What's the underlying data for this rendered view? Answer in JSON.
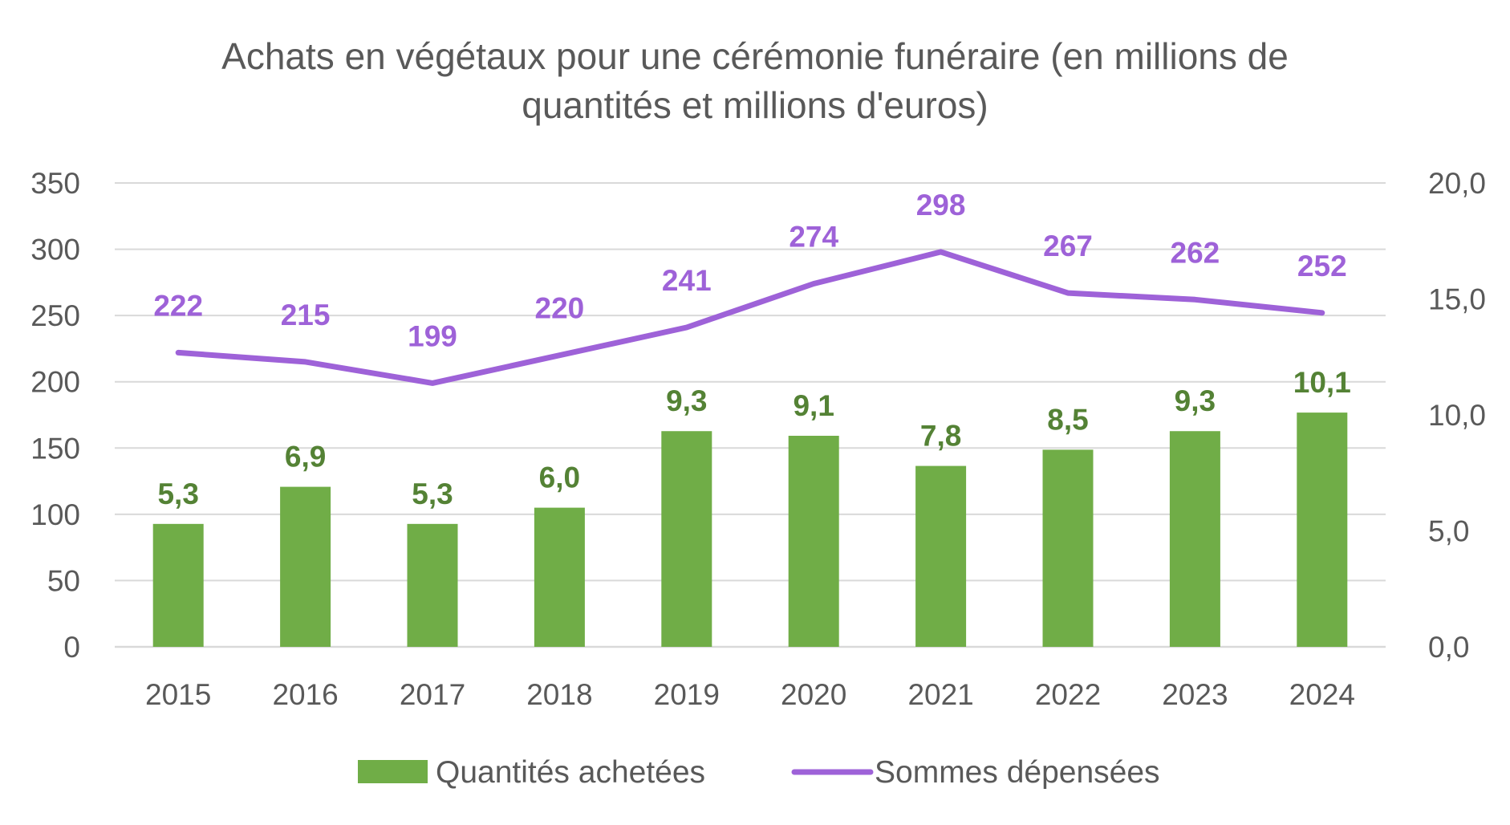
{
  "chart_data": {
    "type": "bar",
    "title": "Achats en végétaux pour une cérémonie funéraire (en millions de quantités et millions d'euros)",
    "categories": [
      "2015",
      "2016",
      "2017",
      "2018",
      "2019",
      "2020",
      "2021",
      "2022",
      "2023",
      "2024"
    ],
    "series": [
      {
        "name": "Quantités achetées",
        "type": "bar",
        "axis": "right",
        "color": "#70AD47",
        "label_color": "#548235",
        "values": [
          5.3,
          6.9,
          5.3,
          6.0,
          9.3,
          9.1,
          7.8,
          8.5,
          9.3,
          10.1
        ],
        "labels": [
          "5,3",
          "6,9",
          "5,3",
          "6,0",
          "9,3",
          "9,1",
          "7,8",
          "8,5",
          "9,3",
          "10,1"
        ]
      },
      {
        "name": "Sommes dépensées",
        "type": "line",
        "axis": "left",
        "color": "#9E62D8",
        "values": [
          222,
          215,
          199,
          220,
          241,
          274,
          298,
          267,
          262,
          252
        ],
        "labels": [
          "222",
          "215",
          "199",
          "220",
          "241",
          "274",
          "298",
          "267",
          "262",
          "252"
        ]
      }
    ],
    "y_left": {
      "range": [
        0,
        350
      ],
      "ticks": [
        0,
        50,
        100,
        150,
        200,
        250,
        300,
        350
      ],
      "tick_labels": [
        "0",
        "50",
        "100",
        "150",
        "200",
        "250",
        "300",
        "350"
      ]
    },
    "y_right": {
      "range": [
        0,
        20
      ],
      "ticks": [
        0,
        5,
        10,
        15,
        20
      ],
      "tick_labels": [
        "0,0",
        "5,0",
        "10,0",
        "15,0",
        "20,0"
      ]
    },
    "grid": true,
    "grid_color": "#D9D9D9",
    "legend_position": "bottom"
  }
}
